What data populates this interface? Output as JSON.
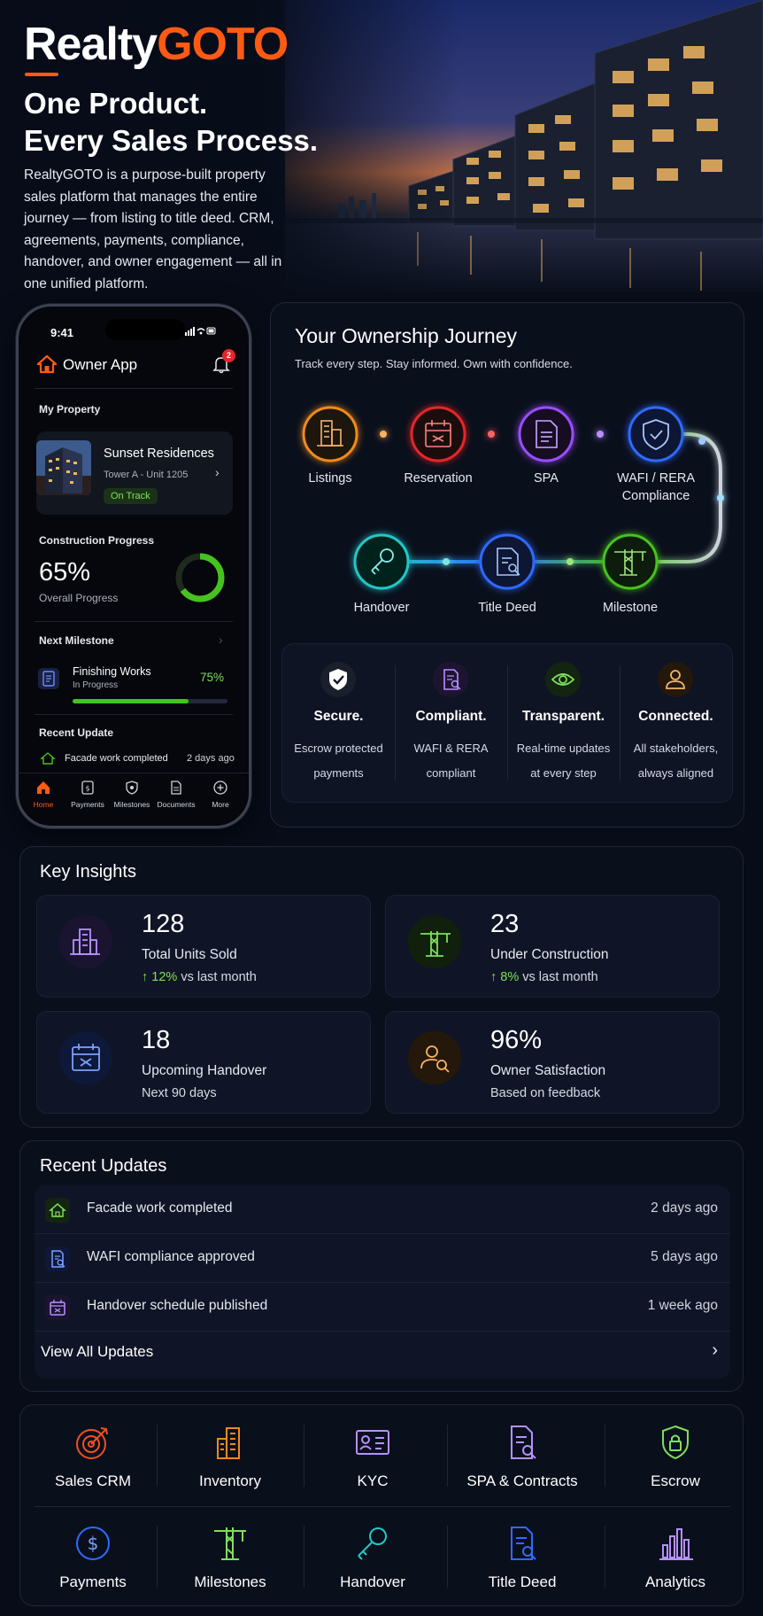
{
  "brand": {
    "part1": "Realty",
    "part2": "GOTO"
  },
  "hero": {
    "headline_line1": "One Product.",
    "headline_line2": "Every Sales Process.",
    "description": "RealtyGOTO is a purpose-built property sales platform that manages the entire journey — from listing to title deed. CRM, agreements, payments, compliance, handover, and owner engagement — all in one unified platform."
  },
  "phone": {
    "time": "9:41",
    "app_title": "Owner App",
    "notification_count": "2",
    "my_property_label": "My Property",
    "property": {
      "name": "Sunset Residences",
      "unit": "Tower A - Unit 1205",
      "status": "On Track"
    },
    "construction": {
      "label": "Construction Progress",
      "percent_text": "65%",
      "sub": "Overall Progress",
      "percent": 65
    },
    "next_milestone": {
      "label": "Next Milestone",
      "title": "Finishing Works",
      "status": "In Progress",
      "percent_text": "75%",
      "percent": 75
    },
    "recent_update": {
      "label": "Recent Update",
      "text": "Facade work completed",
      "time": "2 days ago"
    },
    "tabs": [
      {
        "label": "Home",
        "icon": "home-icon"
      },
      {
        "label": "Payments",
        "icon": "payments-icon"
      },
      {
        "label": "Milestones",
        "icon": "milestones-icon"
      },
      {
        "label": "Documents",
        "icon": "documents-icon"
      },
      {
        "label": "More",
        "icon": "more-icon"
      }
    ]
  },
  "journey": {
    "title": "Your Ownership Journey",
    "subtitle": "Track every step. Stay informed. Own with confidence.",
    "steps": [
      {
        "label": "Listings",
        "icon": "building-icon",
        "color": "#f08a1e"
      },
      {
        "label": "Reservation",
        "icon": "calendar-icon",
        "color": "#e5262a"
      },
      {
        "label": "SPA",
        "icon": "document-icon",
        "color": "#9b4dff"
      },
      {
        "label": "WAFI / RERA Compliance",
        "icon": "shield-check-icon",
        "color": "#2f6bff"
      },
      {
        "label": "Milestone",
        "icon": "crane-icon",
        "color": "#46c21f"
      },
      {
        "label": "Title Deed",
        "icon": "title-deed-icon",
        "color": "#2f6bff"
      },
      {
        "label": "Handover",
        "icon": "key-icon",
        "color": "#22c7c7"
      }
    ],
    "features": [
      {
        "title": "Secure.",
        "line1": "Escrow protected",
        "line2": "payments",
        "icon": "shield-icon",
        "color": "#ffffff"
      },
      {
        "title": "Compliant.",
        "line1": "WAFI & RERA",
        "line2": "compliant",
        "icon": "document-search-icon",
        "color": "#9b4dff"
      },
      {
        "title": "Transparent.",
        "line1": "Real-time updates",
        "line2": "at every step",
        "icon": "eye-icon",
        "color": "#46c21f"
      },
      {
        "title": "Connected.",
        "line1": "All stakeholders,",
        "line2": "always aligned",
        "icon": "user-icon",
        "color": "#f08a1e"
      }
    ]
  },
  "insights": {
    "title": "Key Insights",
    "cards": [
      {
        "value": "128",
        "label": "Total Units Sold",
        "trend": "↑ 12%",
        "sub": " vs last month",
        "icon": "building-icon",
        "color": "#9b4dff"
      },
      {
        "value": "23",
        "label": "Under Construction",
        "trend": "↑ 8%",
        "sub": " vs last month",
        "icon": "crane-icon",
        "color": "#46c21f"
      },
      {
        "value": "18",
        "label": "Upcoming Handover",
        "trend": "",
        "sub": "Next 90 days",
        "icon": "calendar-icon",
        "color": "#2f6bff"
      },
      {
        "value": "96%",
        "label": "Owner Satisfaction",
        "trend": "",
        "sub": "Based on feedback",
        "icon": "user-search-icon",
        "color": "#f08a1e"
      }
    ]
  },
  "updates": {
    "title": "Recent Updates",
    "items": [
      {
        "text": "Facade work completed",
        "time": "2 days ago",
        "icon": "home-icon",
        "color": "#46c21f"
      },
      {
        "text": "WAFI compliance approved",
        "time": "5 days ago",
        "icon": "document-search-icon",
        "color": "#2f6bff"
      },
      {
        "text": "Handover schedule published",
        "time": "1 week ago",
        "icon": "calendar-icon",
        "color": "#9b4dff"
      }
    ],
    "view_all": "View All Updates"
  },
  "modules": [
    {
      "label": "Sales CRM",
      "icon": "target-icon",
      "color": "#f0501e"
    },
    {
      "label": "Inventory",
      "icon": "building-icon",
      "color": "#f08a1e"
    },
    {
      "label": "KYC",
      "icon": "id-card-icon",
      "color": "#9b4dff"
    },
    {
      "label": "SPA & Contracts",
      "icon": "document-search-icon",
      "color": "#9b4dff"
    },
    {
      "label": "Escrow",
      "icon": "shield-lock-icon",
      "color": "#46c21f"
    },
    {
      "label": "Payments",
      "icon": "dollar-icon",
      "color": "#2f6bff"
    },
    {
      "label": "Milestones",
      "icon": "crane-icon",
      "color": "#46c21f"
    },
    {
      "label": "Handover",
      "icon": "key-icon",
      "color": "#22c7c7"
    },
    {
      "label": "Title Deed",
      "icon": "title-deed-icon",
      "color": "#2f6bff"
    },
    {
      "label": "Analytics",
      "icon": "bar-chart-icon",
      "color": "#9b4dff"
    }
  ]
}
